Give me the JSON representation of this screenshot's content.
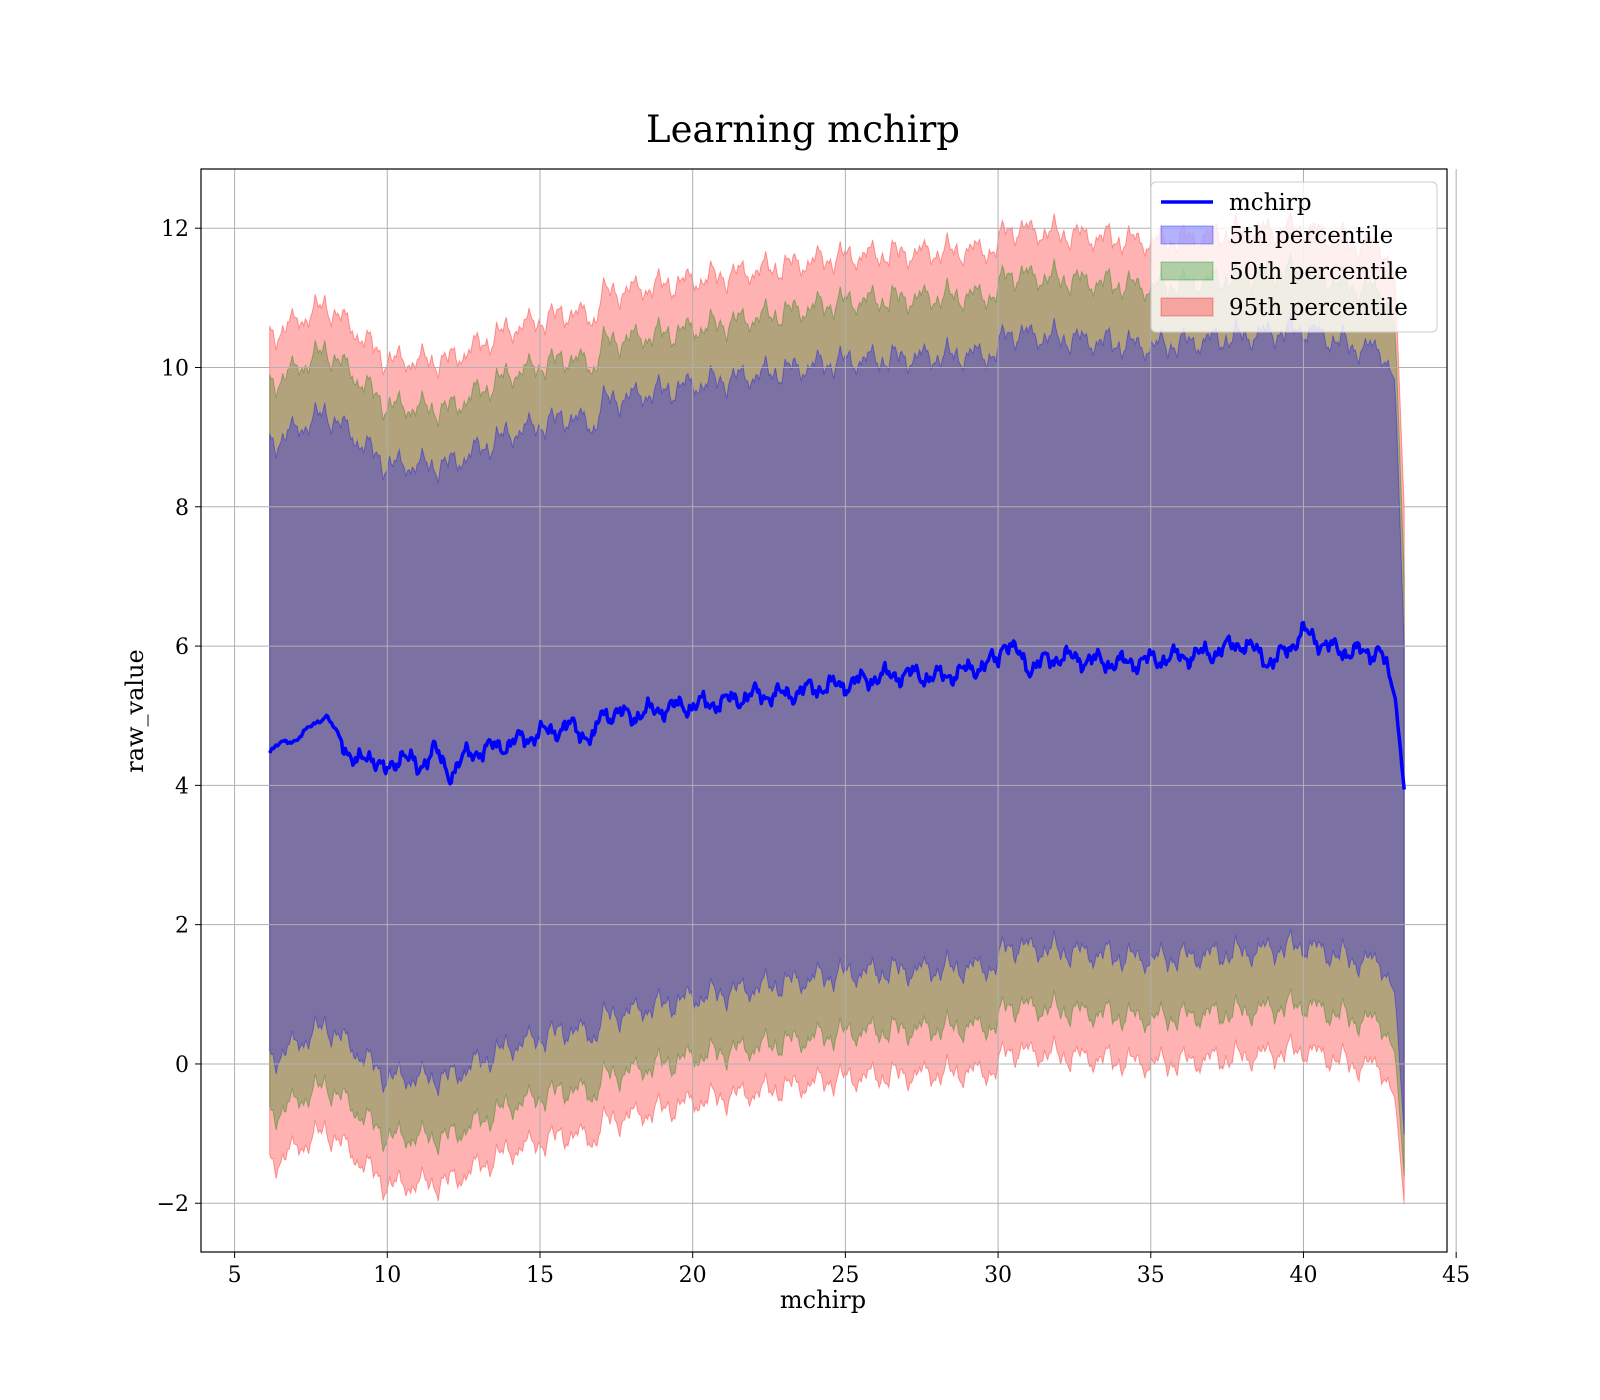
{
  "chart_data": {
    "type": "area",
    "title": "Learning mchirp",
    "xlabel": "mchirp",
    "ylabel": "raw_value",
    "xlim": [
      3.9,
      44.7
    ],
    "ylim": [
      -2.7,
      12.85
    ],
    "xticks": [
      5,
      10,
      15,
      20,
      25,
      30,
      35,
      40,
      45
    ],
    "xtick_labels": [
      "5",
      "10",
      "15",
      "20",
      "25",
      "30",
      "35",
      "40",
      "45"
    ],
    "yticks": [
      -2,
      0,
      2,
      4,
      6,
      8,
      10,
      12
    ],
    "ytick_labels": [
      "−2",
      "0",
      "2",
      "4",
      "6",
      "8",
      "10",
      "12"
    ],
    "grid": true,
    "legend_position": "top-right",
    "line": {
      "name": "mchirp",
      "color": "#0000ff",
      "x": [
        6.15,
        6.5,
        7.0,
        7.5,
        8.0,
        8.5,
        9.0,
        9.5,
        10.0,
        10.5,
        11.0,
        11.5,
        12.0,
        12.5,
        13.0,
        14.0,
        15.0,
        16.0,
        16.8,
        17.0,
        18.0,
        19.0,
        20.0,
        21.0,
        22.0,
        23.0,
        24.0,
        25.0,
        26.0,
        27.0,
        28.0,
        29.0,
        30.0,
        30.2,
        31.0,
        32.0,
        33.0,
        34.0,
        35.0,
        36.0,
        37.0,
        38.0,
        39.0,
        40.0,
        41.0,
        42.0,
        42.5,
        43.0,
        43.3
      ],
      "y": [
        4.5,
        4.6,
        4.65,
        4.85,
        5.0,
        4.65,
        4.3,
        4.45,
        4.15,
        4.5,
        4.2,
        4.55,
        4.15,
        4.4,
        4.5,
        4.6,
        4.75,
        4.85,
        4.65,
        5.05,
        5.0,
        5.1,
        5.15,
        5.2,
        5.3,
        5.3,
        5.4,
        5.45,
        5.55,
        5.6,
        5.55,
        5.65,
        5.8,
        6.1,
        5.7,
        5.85,
        5.8,
        5.75,
        5.8,
        5.85,
        5.9,
        6.05,
        5.75,
        6.2,
        5.95,
        5.9,
        5.95,
        5.3,
        3.95
      ]
    },
    "bands": [
      {
        "name": "5th percentile",
        "color": "#0000ff",
        "x": [
          6.15,
          8.0,
          10.0,
          12.0,
          14.0,
          16.0,
          16.8,
          17.0,
          20.0,
          25.0,
          30.0,
          30.2,
          35.0,
          38.0,
          40.0,
          42.0,
          42.5,
          43.0,
          43.3
        ],
        "upper": [
          8.9,
          9.35,
          8.6,
          8.6,
          9.05,
          9.3,
          9.15,
          9.5,
          9.75,
          10.1,
          10.2,
          10.5,
          10.3,
          10.45,
          10.55,
          10.25,
          10.3,
          9.8,
          6.0
        ],
        "lower": [
          0.05,
          0.55,
          -0.2,
          -0.2,
          0.25,
          0.5,
          0.4,
          0.65,
          0.95,
          1.3,
          1.4,
          1.7,
          1.5,
          1.6,
          1.7,
          1.45,
          1.5,
          1.0,
          -1.0
        ]
      },
      {
        "name": "50th percentile",
        "color": "#008000",
        "x": [
          6.15,
          8.0,
          10.0,
          12.0,
          14.0,
          16.0,
          16.8,
          17.0,
          20.0,
          25.0,
          30.0,
          30.2,
          35.0,
          38.0,
          40.0,
          42.0,
          42.5,
          43.0,
          43.3
        ],
        "upper": [
          9.75,
          10.25,
          9.45,
          9.4,
          9.9,
          10.15,
          10.0,
          10.35,
          10.55,
          10.95,
          11.05,
          11.35,
          11.15,
          11.3,
          11.4,
          11.1,
          11.15,
          10.6,
          7.0
        ],
        "lower": [
          -0.75,
          -0.3,
          -1.05,
          -1.05,
          -0.6,
          -0.35,
          -0.45,
          -0.2,
          0.1,
          0.45,
          0.55,
          0.85,
          0.65,
          0.75,
          0.85,
          0.6,
          0.65,
          0.15,
          -1.6
        ]
      },
      {
        "name": "95th percentile",
        "color": "#ff0000",
        "x": [
          6.15,
          8.0,
          10.0,
          12.0,
          14.0,
          16.0,
          16.8,
          17.0,
          20.0,
          25.0,
          30.0,
          30.2,
          35.0,
          38.0,
          40.0,
          42.0,
          42.5,
          43.0,
          43.3
        ],
        "upper": [
          10.45,
          10.9,
          10.1,
          10.1,
          10.55,
          10.8,
          10.7,
          11.05,
          11.25,
          11.6,
          11.7,
          12.0,
          11.8,
          11.95,
          12.0,
          11.75,
          11.8,
          11.3,
          8.0
        ],
        "lower": [
          -1.45,
          -0.95,
          -1.75,
          -1.7,
          -1.25,
          -1.0,
          -1.1,
          -0.85,
          -0.55,
          -0.2,
          -0.1,
          0.2,
          0.0,
          0.1,
          0.2,
          -0.05,
          0.0,
          -0.5,
          -2.0
        ]
      }
    ]
  }
}
